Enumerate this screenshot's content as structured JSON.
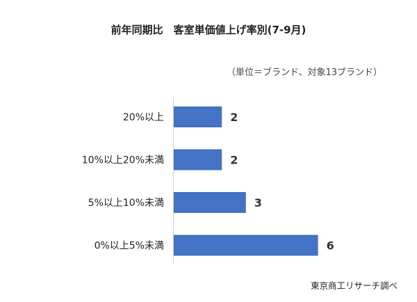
{
  "chart_data": {
    "type": "bar",
    "orientation": "horizontal",
    "title": "前年同期比　客室単価値上げ率別(7-9月)",
    "subtitle": "（単位＝ブランド、対象13ブランド）",
    "source": "東京商工リサーチ調べ",
    "categories": [
      "20%以上",
      "10%以上20%未満",
      "5%以上10%未満",
      "0%以上5%未満"
    ],
    "values": [
      2,
      2,
      3,
      6
    ],
    "data_labels": [
      "2",
      "2",
      "3",
      "6"
    ],
    "xlim": [
      0,
      6
    ],
    "grid": false,
    "bar_color": "#4472c4"
  }
}
